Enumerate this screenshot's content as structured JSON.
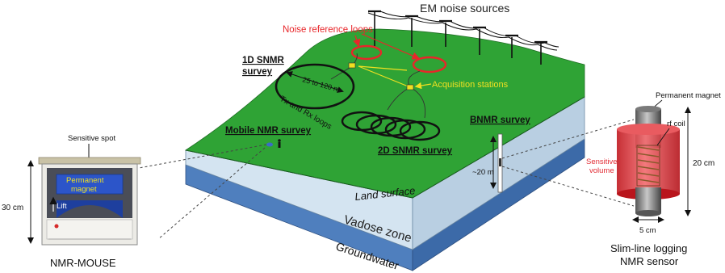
{
  "labels": {
    "em_noise_sources": "EM noise sources",
    "noise_reference_loops": "Noise reference loops",
    "survey_1d": "1D SNMR",
    "survey_1d_line2": "survey",
    "loop_diameter": "25 to 120 m",
    "tx_rx_loops": "Tx and Rx loops",
    "acquisition_stations": "Acquisition stations",
    "mobile_nmr_survey": "Mobile NMR survey",
    "survey_2d": "2D SNMR survey",
    "bnmr_survey": "BNMR survey",
    "depth": "~20 m",
    "land_surface": "Land surface",
    "vadose_zone": "Vadose zone",
    "groundwater": "Groundwater"
  },
  "nmr_mouse": {
    "sensitive_spot": "Sensitive spot",
    "permanent_magnet_line1": "Permanent",
    "permanent_magnet_line2": "magnet",
    "lift": "Lift",
    "height": "30 cm",
    "title": "NMR-MOUSE"
  },
  "logging_sensor": {
    "permanent_magnet": "Permanent magnet",
    "rf_coil": "rf coil",
    "sensitive_volume_line1": "Sensitive",
    "sensitive_volume_line2": "volume",
    "height": "20 cm",
    "width": "5 cm",
    "title_line1": "Slim-line logging",
    "title_line2": "NMR sensor"
  },
  "colors": {
    "land": "#2fa335",
    "vadose": "#cfe1ef",
    "groundwater": "#4f7fbe",
    "noise_loop": "#e8262a",
    "acquisition": "#f0e021",
    "sensitive_volume": "#e22d35"
  }
}
